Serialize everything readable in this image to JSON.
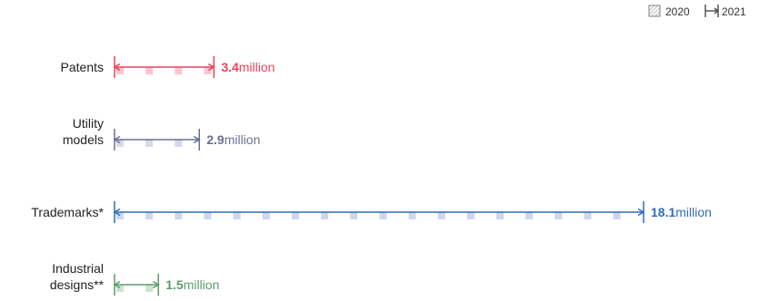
{
  "chart_data": {
    "type": "bar",
    "legend": {
      "placement": "top-right",
      "entries": [
        {
          "name": "2020",
          "style": "hatched-square",
          "color": "#7f7f7f"
        },
        {
          "name": "2021",
          "style": "bracket-arrow",
          "color": "#555555"
        }
      ]
    },
    "unit": "million",
    "xlim": [
      0,
      18.1
    ],
    "grid": false,
    "categories": [
      {
        "label_lines": [
          "Patents"
        ],
        "value_2021": 3.4,
        "value_text": "3.4",
        "color": "#e8445a",
        "faded": "#f7c6cf"
      },
      {
        "label_lines": [
          "Utility",
          "models"
        ],
        "value_2021": 2.9,
        "value_text": "2.9",
        "color": "#6b6f94",
        "faded": "#d6d8e6"
      },
      {
        "label_lines": [
          "Trademarks*"
        ],
        "value_2021": 18.1,
        "value_text": "18.1",
        "color": "#2f6db5",
        "faded": "#c9d9ef"
      },
      {
        "label_lines": [
          "Industrial",
          "designs**"
        ],
        "value_2021": 1.5,
        "value_text": "1.5",
        "color": "#5e9a6e",
        "faded": "#cfe3d4"
      }
    ]
  }
}
